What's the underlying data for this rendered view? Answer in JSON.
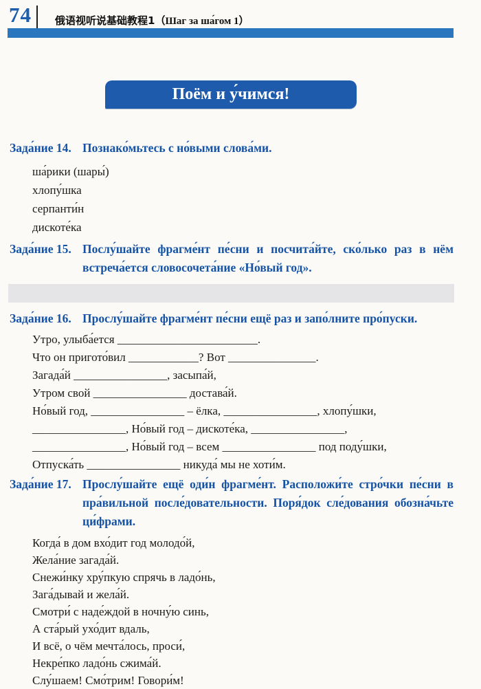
{
  "header": {
    "page_number": "74",
    "book_title_cjk": "俄语视听说基础教程1",
    "book_title_ru": "（Шаг за ша́гом 1）"
  },
  "banner": {
    "title": "Поём и у́чимся!"
  },
  "tasks": {
    "t14": {
      "label": "Зада́ние 14.",
      "text": "Познако́мьтесь с но́выми слова́ми.",
      "items": [
        "ша́рики (шары́)",
        "хлопу́шка",
        "серпанти́н",
        "дискоте́ка"
      ]
    },
    "t15": {
      "label": "Зада́ние 15.",
      "text": "Послу́шайте фрагме́нт пе́сни и посчита́йте, ско́лько раз в нём встреча́ется словосочета́ние «Но́вый год»."
    },
    "t16": {
      "label": "Зада́ние 16.",
      "text": "Прослу́шайте фрагме́нт пе́сни ещё раз и запо́лните про́пуски.",
      "lines": [
        "Утро, улыба́ется ________________________.",
        "Что он пригото́вил ____________? Вот _______________.",
        "Загада́й ________________, засыпа́й,",
        "Утром свой ________________ достава́й.",
        "Но́вый год, ________________ – ёлка, ________________, хлопу́шки,",
        "________________, Но́вый год – дискоте́ка, ________________,",
        "________________, Но́вый год – всем ________________ под поду́шки,",
        "Отпуска́ть ________________ никуда́ мы не хоти́м."
      ]
    },
    "t17": {
      "label": "Зада́ние 17.",
      "text": "Прослу́шайте ещё оди́н фрагме́нт. Расположи́те стро́чки пе́сни в пра́вильной после́довательности. Поря́док сле́дования обозна́чьте ци́фрами.",
      "lines": [
        "Когда́ в дом вхо́дит год молодо́й,",
        "Жела́ние загада́й.",
        "Снежи́нку хру́пкую спрячь в ладо́нь,",
        "Зага́дывай и жела́й.",
        "Смотри́ с наде́ждой в ночну́ю синь,",
        "А ста́рый ухо́дит вдаль,",
        "И всё, о чём мечта́лось, проси́,",
        "Некре́пко ладо́нь сжима́й.",
        "Слу́шаем! Смо́трим! Говори́м!"
      ]
    }
  },
  "colors": {
    "heading_blue": "#1553a6",
    "top_bar_blue": "#2b77bf",
    "banner_blue": "#1e5bac",
    "separator_gray": "#e5e5e7"
  }
}
